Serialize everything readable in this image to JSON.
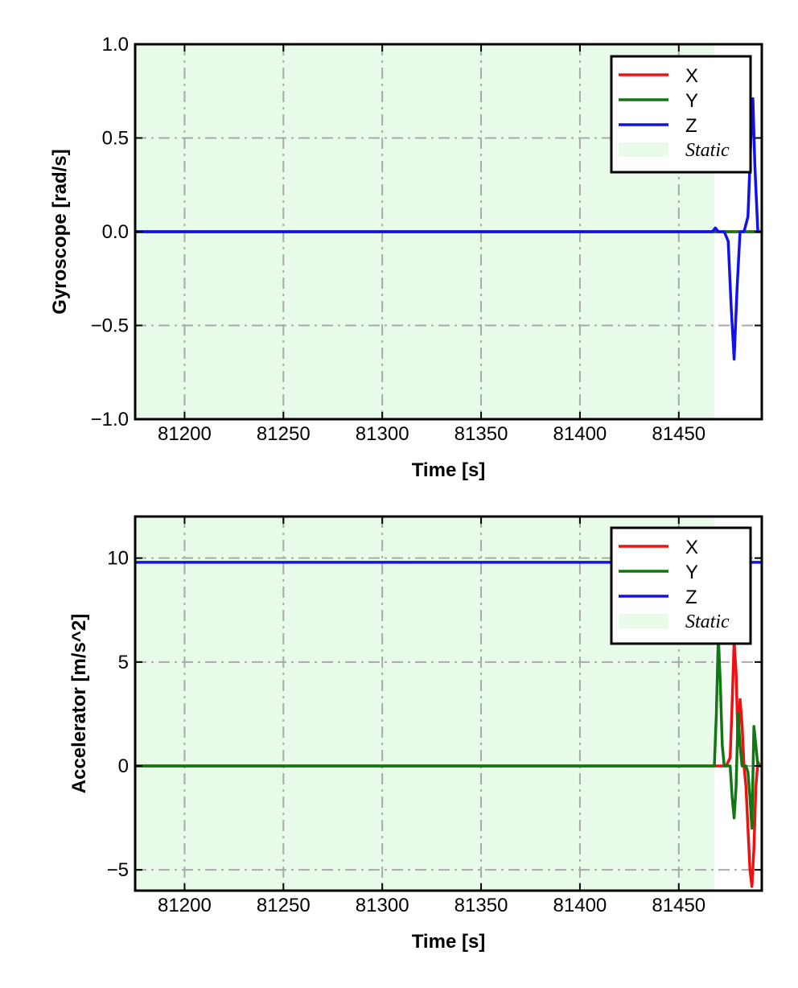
{
  "chart_data": [
    {
      "type": "line",
      "xlabel": "Time [s]",
      "ylabel": "Gyroscope [rad/s]",
      "xlim": [
        81175,
        81492
      ],
      "ylim": [
        -1.0,
        1.0
      ],
      "xticks": [
        81200,
        81250,
        81300,
        81350,
        81400,
        81450
      ],
      "xtick_labels": [
        "81200",
        "81250",
        "81300",
        "81350",
        "81400",
        "81450"
      ],
      "yticks": [
        -1.0,
        -0.5,
        0.0,
        0.5,
        1.0
      ],
      "ytick_labels": [
        "−1.0",
        "−0.5",
        "0.0",
        "0.5",
        "1.0"
      ],
      "grid": true,
      "legend_position": "top-right",
      "static_region": {
        "label": "Static",
        "x": [
          81175,
          81468
        ],
        "color": "#e8fbe8"
      },
      "series": [
        {
          "name": "X",
          "color": "#ee1111",
          "x": [
            81175,
            81468,
            81472,
            81476,
            81480,
            81484,
            81488,
            81492
          ],
          "y": [
            0.0,
            0.0,
            0.0,
            0.0,
            0.0,
            0.0,
            0.0,
            0.0
          ]
        },
        {
          "name": "Y",
          "color": "#117711",
          "x": [
            81175,
            81468,
            81472,
            81476,
            81480,
            81484,
            81488,
            81492
          ],
          "y": [
            0.0,
            0.0,
            0.0,
            0.0,
            0.0,
            0.0,
            0.0,
            0.0
          ]
        },
        {
          "name": "Z",
          "color": "#1111ee",
          "x": [
            81175,
            81467,
            81468.5,
            81470,
            81473,
            81475,
            81476.5,
            81478,
            81479.5,
            81481,
            81483,
            81485,
            81486.5,
            81487.5,
            81488.5,
            81490,
            81492
          ],
          "y": [
            0.0,
            0.0,
            0.02,
            0.0,
            0.0,
            -0.05,
            -0.4,
            -0.68,
            -0.3,
            0.0,
            0.0,
            0.08,
            0.5,
            0.71,
            0.35,
            0.0,
            0.0
          ]
        }
      ]
    },
    {
      "type": "line",
      "xlabel": "Time [s]",
      "ylabel": "Accelerator [m/s^2]",
      "xlim": [
        81175,
        81492
      ],
      "ylim": [
        -6.0,
        12.0
      ],
      "xticks": [
        81200,
        81250,
        81300,
        81350,
        81400,
        81450
      ],
      "xtick_labels": [
        "81200",
        "81250",
        "81300",
        "81350",
        "81400",
        "81450"
      ],
      "yticks": [
        -5,
        0,
        5,
        10
      ],
      "ytick_labels": [
        "−5",
        "0",
        "5",
        "10"
      ],
      "grid": true,
      "legend_position": "top-right",
      "static_region": {
        "label": "Static",
        "x": [
          81175,
          81468
        ],
        "color": "#e8fbe8"
      },
      "series": [
        {
          "name": "X",
          "color": "#ee1111",
          "x": [
            81175,
            81474,
            81476,
            81477,
            81478,
            81479,
            81480,
            81481,
            81482,
            81483,
            81484,
            81485,
            81486,
            81487,
            81488,
            81489,
            81490,
            81491,
            81492
          ],
          "y": [
            0.0,
            0.0,
            0.4,
            3.0,
            6.0,
            4.5,
            1.0,
            3.2,
            2.0,
            0.0,
            -1.0,
            -3.0,
            -5.0,
            -5.8,
            -4.0,
            -1.0,
            0.2,
            0.0,
            0.0
          ]
        },
        {
          "name": "Y",
          "color": "#117711",
          "x": [
            81175,
            81468,
            81469,
            81470,
            81471,
            81472,
            81473,
            81474,
            81476,
            81477,
            81478,
            81479,
            81480,
            81481,
            81482,
            81484,
            81485,
            81486,
            81487,
            81488,
            81489,
            81490,
            81492
          ],
          "y": [
            0.0,
            0.0,
            2.5,
            6.3,
            4.0,
            1.0,
            0.0,
            0.0,
            0.0,
            -1.5,
            -2.5,
            -1.0,
            2.5,
            1.0,
            0.0,
            0.0,
            -0.3,
            -1.5,
            -3.0,
            1.9,
            1.0,
            0.0,
            0.0
          ]
        },
        {
          "name": "Z",
          "color": "#1111ee",
          "x": [
            81175,
            81468,
            81470,
            81474,
            81478,
            81482,
            81486,
            81489,
            81492
          ],
          "y": [
            9.8,
            9.8,
            9.8,
            9.8,
            9.8,
            9.8,
            9.8,
            9.8,
            9.8
          ]
        }
      ]
    }
  ]
}
